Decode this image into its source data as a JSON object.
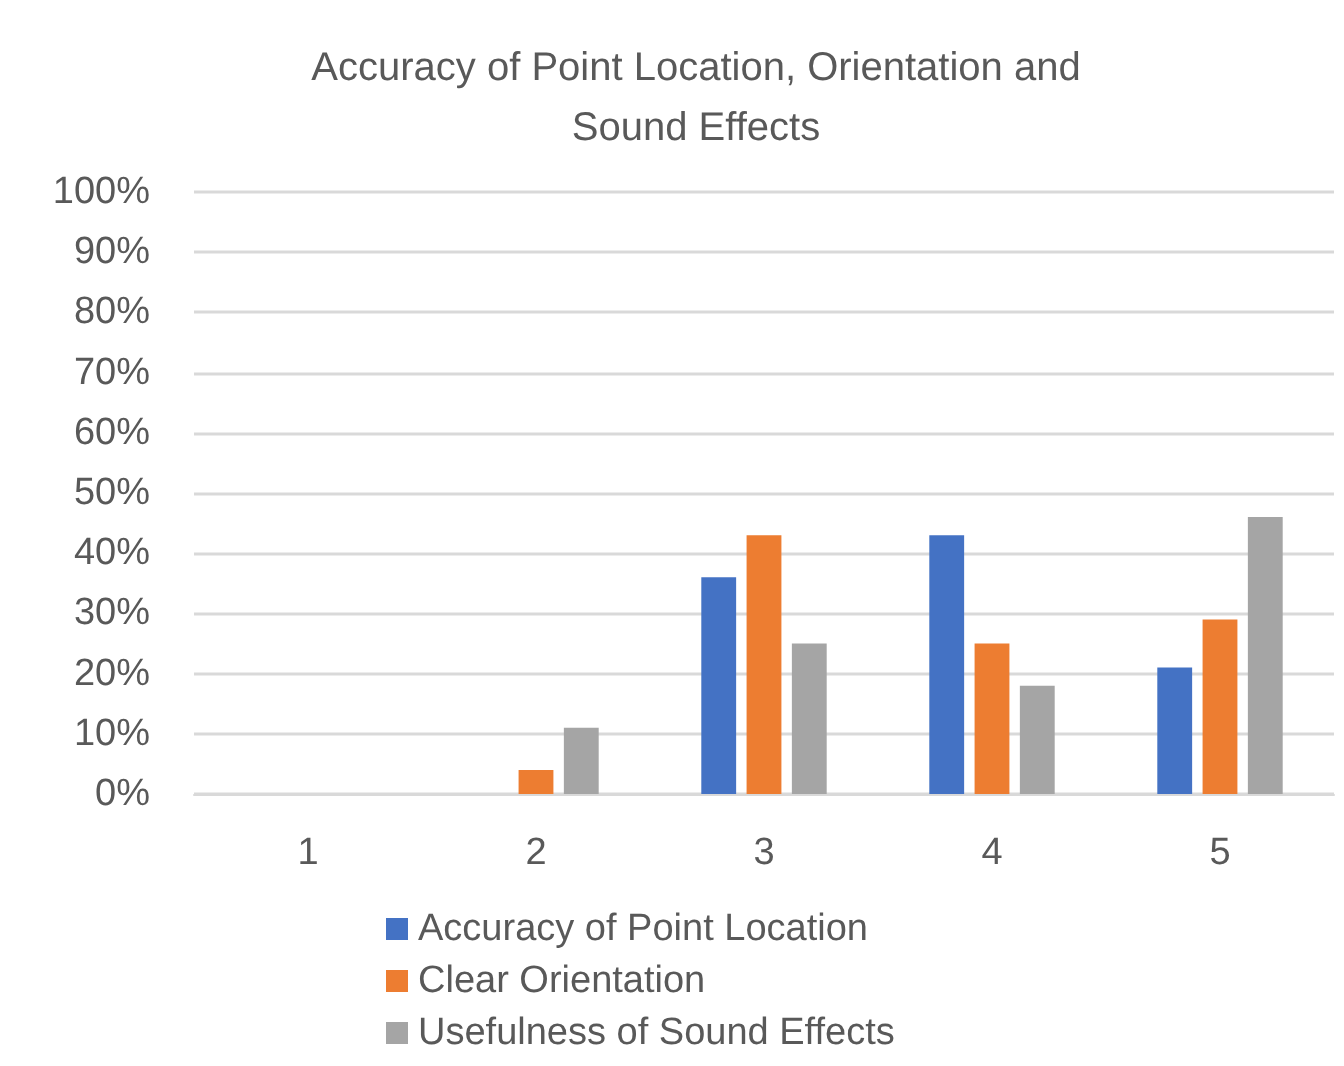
{
  "chart_data": {
    "type": "bar",
    "title": "Accuracy of Point Location, Orientation and\nSound Effects",
    "categories": [
      "1",
      "2",
      "3",
      "4",
      "5"
    ],
    "series": [
      {
        "name": "Accuracy of Point Location",
        "color": "#4472c4",
        "values": [
          0,
          0,
          36,
          43,
          21
        ]
      },
      {
        "name": "Clear Orientation",
        "color": "#ed7d31",
        "values": [
          0,
          4,
          43,
          25,
          29
        ]
      },
      {
        "name": "Usefulness of Sound Effects",
        "color": "#a5a5a5",
        "values": [
          0,
          11,
          25,
          18,
          46
        ]
      }
    ],
    "ylim": [
      0,
      100
    ],
    "yticks": [
      {
        "value": 0,
        "label": "0%"
      },
      {
        "value": 10,
        "label": "10%"
      },
      {
        "value": 20,
        "label": "20%"
      },
      {
        "value": 30,
        "label": "30%"
      },
      {
        "value": 40,
        "label": "40%"
      },
      {
        "value": 50,
        "label": "50%"
      },
      {
        "value": 60,
        "label": "60%"
      },
      {
        "value": 70,
        "label": "70%"
      },
      {
        "value": 80,
        "label": "80%"
      },
      {
        "value": 90,
        "label": "90%"
      },
      {
        "value": 100,
        "label": "100%"
      }
    ],
    "grid": "y",
    "legend": "bottom"
  }
}
